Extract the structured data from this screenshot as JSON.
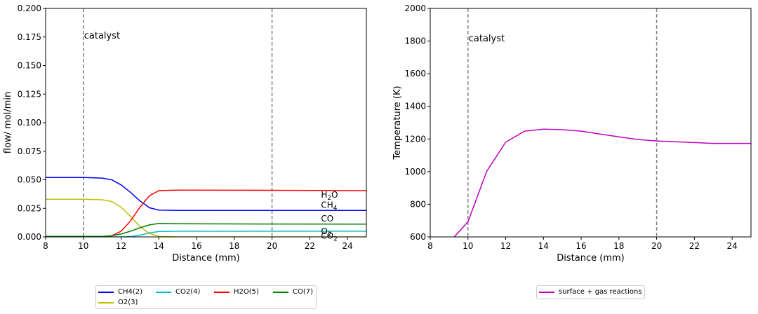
{
  "chart_data": [
    {
      "type": "line",
      "xlabel": "Distance (mm)",
      "ylabel": "flow/ mol/min",
      "xlim": [
        8,
        25
      ],
      "ylim": [
        0,
        0.2
      ],
      "xticks": [
        8,
        10,
        12,
        14,
        16,
        18,
        20,
        22,
        24
      ],
      "yticks": [
        0.0,
        0.025,
        0.05,
        0.075,
        0.1,
        0.125,
        0.15,
        0.175,
        0.2
      ],
      "ytick_labels": [
        "0.000",
        "0.025",
        "0.050",
        "0.075",
        "0.100",
        "0.125",
        "0.150",
        "0.175",
        "0.200"
      ],
      "grid": false,
      "vlines": [
        10,
        20
      ],
      "vline_color": "#808080",
      "annotation": {
        "text": "catalyst",
        "x": 10,
        "y": 0.176
      },
      "end_labels": [
        {
          "text": "H",
          "sub": "2",
          "tail": "O",
          "x": 22,
          "y": 0.0375
        },
        {
          "text": "CH",
          "sub": "4",
          "tail": "",
          "x": 22,
          "y": 0.0285
        },
        {
          "text": "CO",
          "sub": "",
          "tail": "",
          "x": 22,
          "y": 0.0165
        },
        {
          "text": "O",
          "sub": "2",
          "tail": "",
          "x": 22,
          "y": 0.0055
        },
        {
          "text": "CO",
          "sub": "2",
          "tail": "",
          "x": 22,
          "y": 0.0015
        }
      ],
      "series": [
        {
          "name": "CH4(2)",
          "color": "#0000ff",
          "x": [
            8,
            10,
            11,
            11.5,
            12,
            12.5,
            13,
            13.5,
            14,
            15,
            20,
            25
          ],
          "values": [
            0.052,
            0.052,
            0.0515,
            0.05,
            0.0455,
            0.039,
            0.0315,
            0.0255,
            0.0235,
            0.0232,
            0.0232,
            0.0232
          ]
        },
        {
          "name": "O2(3)",
          "color": "#bfbf00",
          "x": [
            8,
            10,
            11,
            11.5,
            12,
            12.5,
            13,
            13.5,
            14,
            15,
            25
          ],
          "values": [
            0.033,
            0.033,
            0.0325,
            0.031,
            0.026,
            0.018,
            0.009,
            0.003,
            0.0005,
            0.0,
            0.0
          ]
        },
        {
          "name": "CO2(4)",
          "color": "#00bfbf",
          "x": [
            8,
            12,
            12.5,
            13,
            13.5,
            14,
            15,
            20,
            25
          ],
          "values": [
            0.0,
            0.0,
            0.0003,
            0.0015,
            0.0035,
            0.0048,
            0.005,
            0.005,
            0.005
          ]
        },
        {
          "name": "H2O(5)",
          "color": "#ff0000",
          "x": [
            8,
            11,
            11.5,
            12,
            12.5,
            13,
            13.5,
            14,
            15,
            20,
            25
          ],
          "values": [
            0.0,
            0.0,
            0.001,
            0.005,
            0.014,
            0.026,
            0.036,
            0.0405,
            0.041,
            0.0408,
            0.0405
          ]
        },
        {
          "name": "CO(7)",
          "color": "#008000",
          "x": [
            8,
            11,
            11.5,
            12,
            12.5,
            13,
            13.5,
            14,
            15,
            20,
            25
          ],
          "values": [
            0.0005,
            0.0005,
            0.001,
            0.0025,
            0.005,
            0.008,
            0.0105,
            0.0118,
            0.0115,
            0.0113,
            0.0112
          ]
        }
      ]
    },
    {
      "type": "line",
      "xlabel": "Distance (mm)",
      "ylabel": "Temperature (K)",
      "xlim": [
        8,
        25
      ],
      "ylim": [
        600,
        2000
      ],
      "xticks": [
        8,
        10,
        12,
        14,
        16,
        18,
        20,
        22,
        24
      ],
      "yticks": [
        600,
        800,
        1000,
        1200,
        1400,
        1600,
        1800,
        2000
      ],
      "ytick_labels": [
        "600",
        "800",
        "1000",
        "1200",
        "1400",
        "1600",
        "1800",
        "2000"
      ],
      "grid": false,
      "vlines": [
        10,
        20
      ],
      "vline_color": "#808080",
      "annotation": {
        "text": "catalyst",
        "x": 10,
        "y": 1815
      },
      "series": [
        {
          "name": "surface + gas reactions",
          "color": "#bf00bf",
          "x": [
            9,
            10,
            11,
            12,
            13,
            14,
            15,
            16,
            17,
            18,
            19,
            20,
            21,
            22,
            23,
            24,
            25
          ],
          "values": [
            565,
            693,
            1003,
            1180,
            1248,
            1260,
            1257,
            1248,
            1230,
            1213,
            1197,
            1188,
            1183,
            1178,
            1173,
            1173,
            1173
          ]
        }
      ]
    }
  ]
}
